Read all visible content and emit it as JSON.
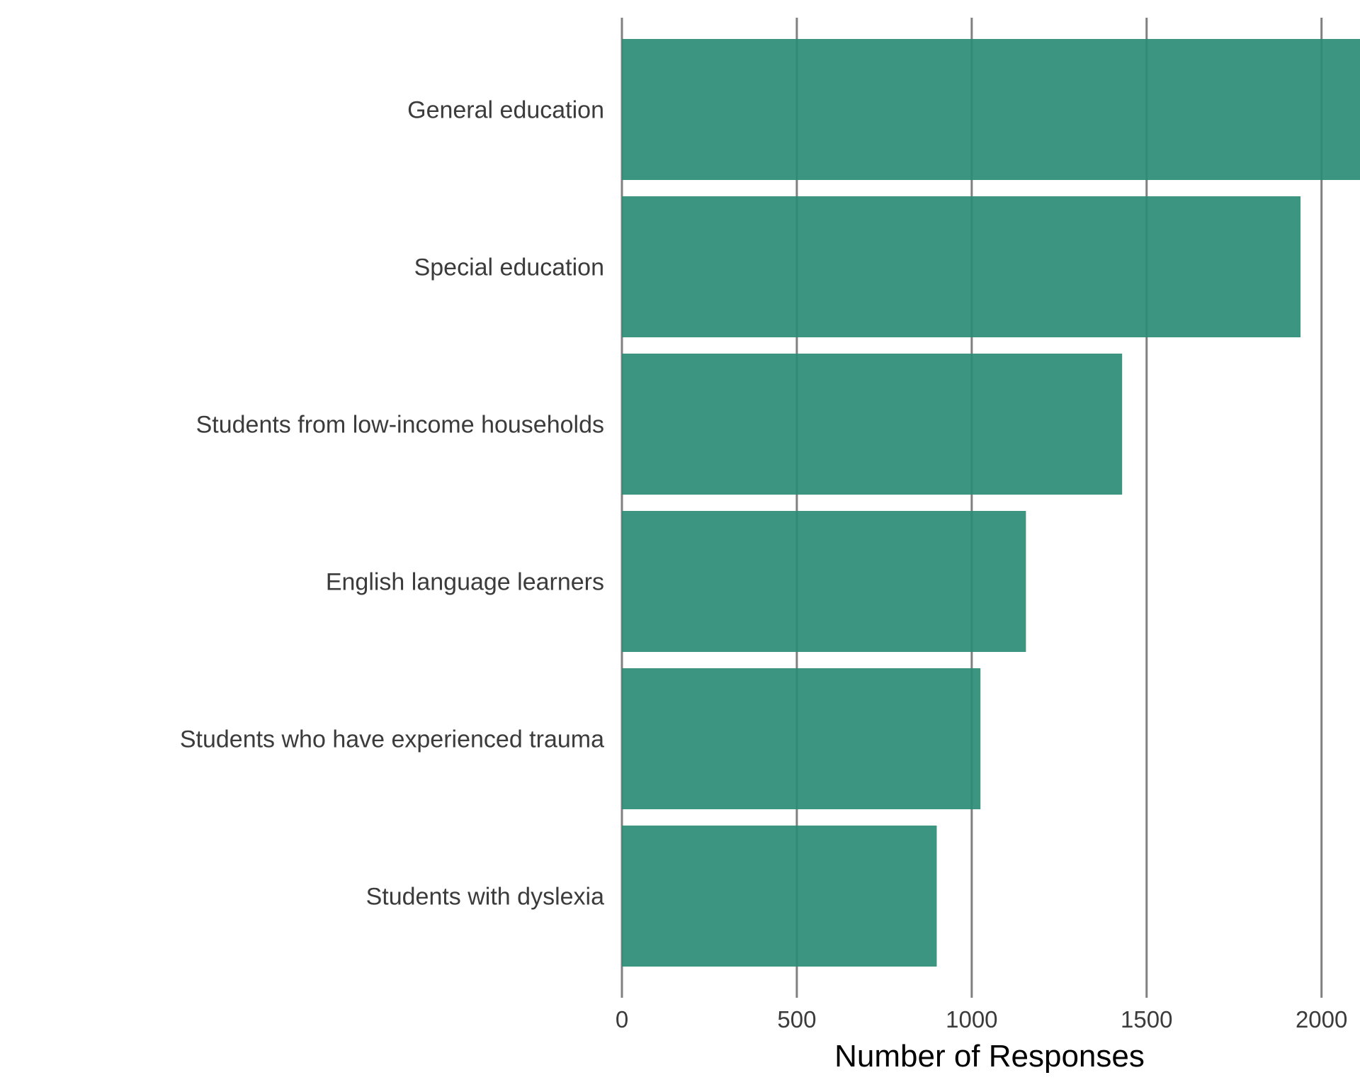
{
  "chart_data": {
    "type": "bar",
    "orientation": "horizontal",
    "categories": [
      "General education",
      "Special education",
      "Students from low-income households",
      "English language learners",
      "Students who have experienced trauma",
      "Students with dyslexia"
    ],
    "values": [
      2115,
      1940,
      1430,
      1155,
      1025,
      900
    ],
    "xlabel": "Number of Responses",
    "ylabel": "",
    "xlim": [
      0,
      2110
    ],
    "xticks": [
      0,
      500,
      1000,
      1500,
      2000
    ],
    "xtick_labels": [
      "0",
      "500",
      "1000",
      "1500",
      "2000"
    ],
    "grid": "vertical",
    "bar_color": "#2a8c76",
    "grid_color": "#808080"
  }
}
